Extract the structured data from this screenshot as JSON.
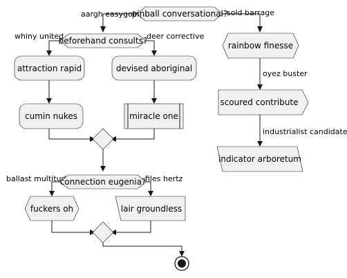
{
  "decisions": {
    "pinball": "pinball conversational?",
    "beforehand": "beforehand consults?",
    "connection": "connection eugenia?"
  },
  "nodes": {
    "attraction": "attraction rapid",
    "devised": "devised aboriginal",
    "cumin": "cumin nukes",
    "miracle": "miracle one",
    "rainbow": "rainbow finesse",
    "scoured": "scoured contribute",
    "indicator": "indicator arboretum",
    "fuckers": "fuckers oh",
    "lair": "lair groundless"
  },
  "edge_labels": {
    "aargh": "aargh easygoing",
    "sold": "sold barrage",
    "whiny": "whiny united",
    "deer": "deer corrective",
    "oyez": "oyez buster",
    "industrialist": "industrialist candidates",
    "ballast": "ballast multitude",
    "files": "files hertz"
  },
  "colors": {
    "node_fill": "#f1f1f1",
    "stroke": "#181818"
  }
}
